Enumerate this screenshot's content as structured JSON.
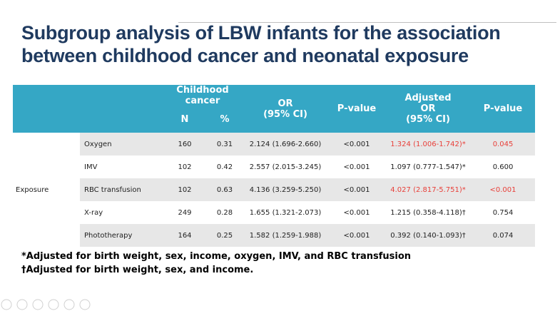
{
  "header": {
    "title_lines": [
      "Subgroup analysis of LBW infants for the association",
      "between childhood cancer and neonatal exposure"
    ]
  },
  "table": {
    "header": {
      "group": "Childhood cancer",
      "n": "N",
      "pct": "%",
      "or": [
        "OR",
        "(95% CI)"
      ],
      "p": "P-value",
      "adj_or": [
        "Adjusted",
        "OR",
        "(95% CI)"
      ],
      "adj_p": "P-value"
    },
    "row_group": "Exposure",
    "highlight_color": "#e8403a",
    "rows": [
      {
        "cells": [
          "Oxygen",
          "160",
          "0.31",
          "2.124 (1.696-2.660)",
          "<0.001",
          "1.324 (1.006-1.742)*",
          "0.045"
        ],
        "highlighted": [
          false,
          false,
          false,
          false,
          false,
          true,
          true
        ]
      },
      {
        "cells": [
          "IMV",
          "102",
          "0.42",
          "2.557 (2.015-3.245)",
          "<0.001",
          "1.097 (0.777-1.547)*",
          "0.600"
        ],
        "highlighted": [
          false,
          false,
          false,
          false,
          false,
          false,
          false
        ]
      },
      {
        "cells": [
          "RBC transfusion",
          "102",
          "0.63",
          "4.136 (3.259-5.250)",
          "<0.001",
          "4.027 (2.817-5.751)*",
          "<0.001"
        ],
        "highlighted": [
          false,
          false,
          false,
          false,
          false,
          true,
          true
        ]
      },
      {
        "cells": [
          "X-ray",
          "249",
          "0.28",
          "1.655 (1.321-2.073)",
          "<0.001",
          "1.215 (0.358-4.118)†",
          "0.754"
        ],
        "highlighted": [
          false,
          false,
          false,
          false,
          false,
          false,
          false
        ]
      },
      {
        "cells": [
          "Phototherapy",
          "164",
          "0.25",
          "1.582 (1.259-1.988)",
          "<0.001",
          "0.392 (0.140-1.093)†",
          "0.074"
        ],
        "highlighted": [
          false,
          false,
          false,
          false,
          false,
          false,
          false
        ]
      }
    ]
  },
  "footnotes": [
    "*Adjusted for birth weight, sex, income, oxygen, IMV, and RBC transfusion",
    "†Adjusted for birth weight, sex, and income."
  ]
}
